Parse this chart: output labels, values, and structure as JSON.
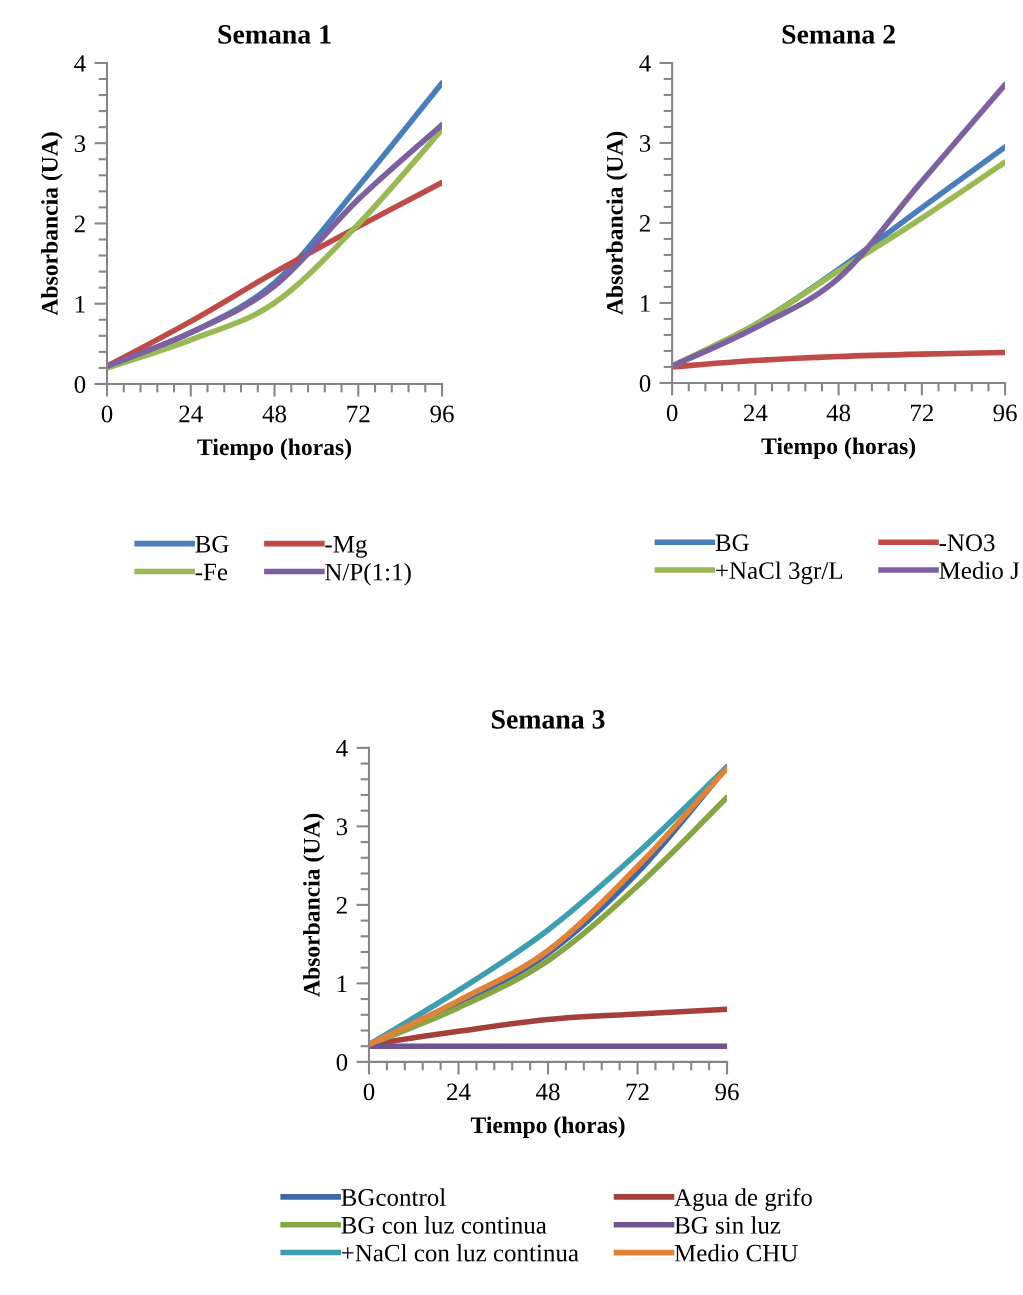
{
  "chart_data": [
    {
      "type": "line",
      "title": "Semana 1",
      "xlabel": "Tiempo (horas)",
      "ylabel": "Absorbancia (UA)",
      "x": [
        0,
        24,
        48,
        72,
        96
      ],
      "xlim": [
        0,
        96
      ],
      "xticks": [
        0,
        24,
        48,
        72,
        96
      ],
      "ylim": [
        0,
        4
      ],
      "yticks": [
        0,
        1,
        2,
        3,
        4
      ],
      "legend": "bottom",
      "grid": false,
      "marker": "none",
      "line_style": "solid",
      "series": [
        {
          "name": "BG",
          "color": "#4a7ebb",
          "values": [
            0.22,
            0.64,
            1.26,
            2.46,
            3.75
          ]
        },
        {
          "name": "-Mg",
          "color": "#be4b48",
          "values": [
            0.22,
            0.78,
            1.39,
            1.96,
            2.51
          ]
        },
        {
          "name": "-Fe",
          "color": "#98b954",
          "values": [
            0.2,
            0.55,
            1.01,
            1.99,
            3.17
          ]
        },
        {
          "name": "N/P(1:1)",
          "color": "#7d60a0",
          "values": [
            0.22,
            0.64,
            1.22,
            2.3,
            3.23
          ]
        }
      ]
    },
    {
      "type": "line",
      "title": "Semana 2",
      "xlabel": "Tiempo (horas)",
      "ylabel": "Absorbancia (UA)",
      "x": [
        0,
        24,
        48,
        72,
        96
      ],
      "xlim": [
        0,
        96
      ],
      "xticks": [
        0,
        24,
        48,
        72,
        96
      ],
      "ylim": [
        0,
        4
      ],
      "yticks": [
        0,
        1,
        2,
        3,
        4
      ],
      "legend": "bottom",
      "grid": false,
      "marker": "none",
      "line_style": "solid",
      "series": [
        {
          "name": "BG",
          "color": "#4a7ebb",
          "values": [
            0.21,
            0.73,
            1.42,
            2.19,
            2.95
          ]
        },
        {
          "name": "-NO3",
          "color": "#be4b48",
          "values": [
            0.2,
            0.28,
            0.33,
            0.36,
            0.38
          ]
        },
        {
          "name": "+NaCl 3gr/L",
          "color": "#98b954",
          "values": [
            0.21,
            0.73,
            1.4,
            2.06,
            2.76
          ]
        },
        {
          "name": "Medio J",
          "color": "#7d60a0",
          "values": [
            0.21,
            0.69,
            1.31,
            2.52,
            3.73
          ]
        }
      ]
    },
    {
      "type": "line",
      "title": "Semana 3",
      "xlabel": "Tiempo (horas)",
      "ylabel": "Absorbancia (UA)",
      "x": [
        0,
        24,
        48,
        72,
        96
      ],
      "xlim": [
        0,
        96
      ],
      "xticks": [
        0,
        24,
        48,
        72,
        96
      ],
      "ylim": [
        0,
        4
      ],
      "yticks": [
        0,
        1,
        2,
        3,
        4
      ],
      "legend": "bottom",
      "grid": false,
      "marker": "none",
      "line_style": "solid",
      "series": [
        {
          "name": "BGcontrol",
          "color": "#3f68a8",
          "values": [
            0.22,
            0.74,
            1.38,
            2.41,
            3.76
          ]
        },
        {
          "name": "Agua de grifo",
          "color": "#a53f3c",
          "values": [
            0.22,
            0.39,
            0.54,
            0.61,
            0.67
          ]
        },
        {
          "name": "BG con luz continua",
          "color": "#86a545",
          "values": [
            0.22,
            0.69,
            1.29,
            2.24,
            3.37
          ]
        },
        {
          "name": "BG sin luz",
          "color": "#6e5590",
          "values": [
            0.2,
            0.2,
            0.2,
            0.2,
            0.2
          ]
        },
        {
          "name": "+NaCl con luz continua",
          "color": "#3f9db0",
          "values": [
            0.22,
            0.91,
            1.68,
            2.66,
            3.76
          ]
        },
        {
          "name": "Medio CHU",
          "color": "#e0823a",
          "values": [
            0.22,
            0.78,
            1.42,
            2.49,
            3.74
          ]
        }
      ]
    }
  ]
}
